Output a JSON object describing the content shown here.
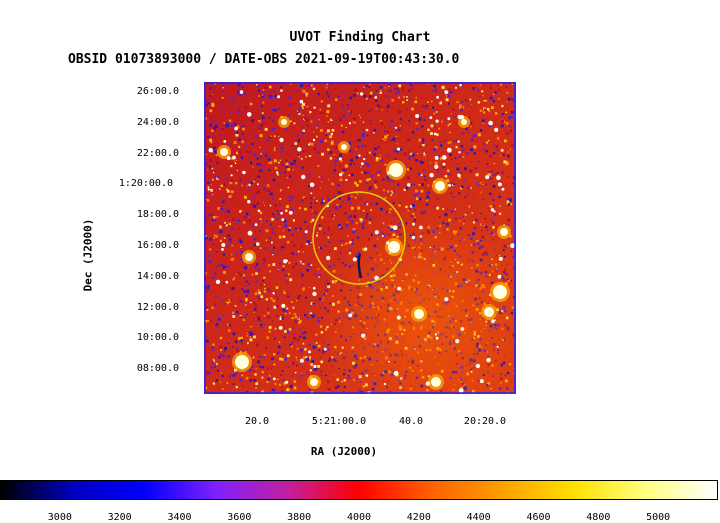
{
  "chart_data": {
    "type": "heatmap",
    "title": "UVOT Finding Chart",
    "subtitle": "OBSID 01073893000 / DATE-OBS 2021-09-19T00:43:30.0",
    "xlabel": "RA (J2000)",
    "ylabel": "Dec (J2000)",
    "x_ticks": [
      "20.0",
      "5:21:00.0",
      "40.0",
      "20:20.0"
    ],
    "y_ticks": [
      "26:00.0",
      "24:00.0",
      "22:00.0",
      "1:20:00.0",
      "18:00.0",
      "16:00.0",
      "14:00.0",
      "12:00.0",
      "10:00.0",
      "08:00.0"
    ],
    "colorbar": {
      "ticks": [
        3000,
        3200,
        3400,
        3600,
        3800,
        4000,
        4200,
        4400,
        4600,
        4800,
        5000
      ],
      "range": [
        2800,
        5200
      ],
      "colormap": [
        "#000000",
        "#0000c0",
        "#0000ff",
        "#8020ff",
        "#c020a0",
        "#ff0000",
        "#ff6000",
        "#ffa000",
        "#ffe000",
        "#ffff80",
        "#ffffff"
      ]
    },
    "circle_color": "#e8d000",
    "frame_color": "#2020ff"
  }
}
